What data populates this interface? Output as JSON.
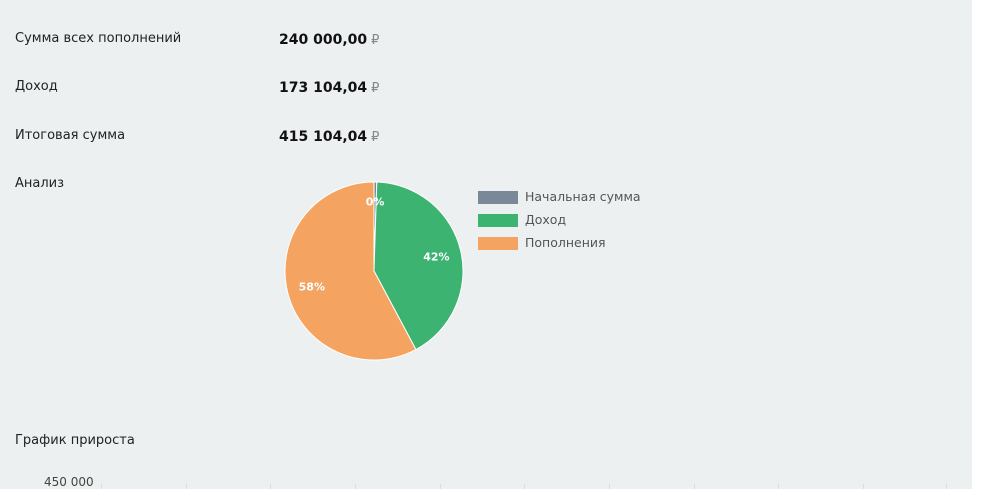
{
  "summary": {
    "total_deposits": {
      "label": "Сумма всех пополнений",
      "value": "240 000,00",
      "currency": "₽"
    },
    "income": {
      "label": "Доход",
      "value": "173 104,04",
      "currency": "₽"
    },
    "final_sum": {
      "label": "Итоговая сумма",
      "value": "415 104,04",
      "currency": "₽"
    }
  },
  "analysis": {
    "title": "Анализ"
  },
  "chart_data": [
    {
      "type": "pie",
      "title": "Анализ",
      "slices": [
        {
          "label": "Начальная сумма",
          "value": 0.5,
          "display": "0%",
          "color": "#7a8898"
        },
        {
          "label": "Доход",
          "value": 41.7,
          "display": "42%",
          "color": "#3cb371"
        },
        {
          "label": "Пополнения",
          "value": 57.8,
          "display": "58%",
          "color": "#f4a460"
        }
      ],
      "legend_position": "right"
    },
    {
      "type": "line",
      "title": "График прироста",
      "y_ticks": [
        "450 000"
      ]
    }
  ],
  "growth": {
    "title": "График прироста",
    "y_tick_top": "450 000"
  }
}
